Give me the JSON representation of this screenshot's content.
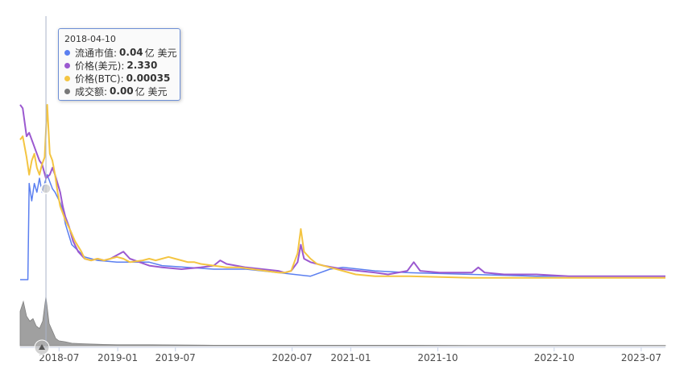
{
  "chart_data": {
    "type": "line",
    "x_tick_labels": [
      "2018-07",
      "2019-01",
      "2019-07",
      "2020-07",
      "2021-01",
      "2021-10",
      "2022-10",
      "2023-07"
    ],
    "x_range": [
      "2018-03-01",
      "2023-09-15"
    ],
    "series": [
      {
        "name": "流通市值",
        "color": "#5b7ff0",
        "values": [
          [
            0,
            0
          ],
          [
            0.012,
            0
          ],
          [
            0.014,
            0.55
          ],
          [
            0.018,
            0.45
          ],
          [
            0.022,
            0.55
          ],
          [
            0.026,
            0.5
          ],
          [
            0.03,
            0.58
          ],
          [
            0.034,
            0.5
          ],
          [
            0.038,
            0.55
          ],
          [
            0.042,
            0.6
          ],
          [
            0.046,
            0.56
          ],
          [
            0.05,
            0.52
          ],
          [
            0.054,
            0.5
          ],
          [
            0.058,
            0.47
          ],
          [
            0.062,
            0.44
          ],
          [
            0.066,
            0.4
          ],
          [
            0.07,
            0.32
          ],
          [
            0.08,
            0.2
          ],
          [
            0.1,
            0.13
          ],
          [
            0.12,
            0.11
          ],
          [
            0.15,
            0.1
          ],
          [
            0.2,
            0.1
          ],
          [
            0.22,
            0.08
          ],
          [
            0.3,
            0.06
          ],
          [
            0.35,
            0.06
          ],
          [
            0.4,
            0.04
          ],
          [
            0.45,
            0.02
          ],
          [
            0.48,
            0.06
          ],
          [
            0.5,
            0.07
          ],
          [
            0.55,
            0.05
          ],
          [
            0.6,
            0.04
          ],
          [
            0.7,
            0.03
          ],
          [
            0.8,
            0.02
          ],
          [
            0.9,
            0.02
          ],
          [
            1.0,
            0.02
          ]
        ]
      },
      {
        "name": "价格(美元)",
        "color": "#9b59d0",
        "values": [
          [
            0,
            1.0
          ],
          [
            0.004,
            0.98
          ],
          [
            0.01,
            0.82
          ],
          [
            0.014,
            0.84
          ],
          [
            0.02,
            0.78
          ],
          [
            0.026,
            0.72
          ],
          [
            0.03,
            0.68
          ],
          [
            0.034,
            0.66
          ],
          [
            0.04,
            0.58
          ],
          [
            0.046,
            0.6
          ],
          [
            0.05,
            0.64
          ],
          [
            0.054,
            0.6
          ],
          [
            0.058,
            0.55
          ],
          [
            0.062,
            0.5
          ],
          [
            0.066,
            0.42
          ],
          [
            0.07,
            0.36
          ],
          [
            0.076,
            0.3
          ],
          [
            0.082,
            0.22
          ],
          [
            0.09,
            0.16
          ],
          [
            0.1,
            0.12
          ],
          [
            0.11,
            0.11
          ],
          [
            0.12,
            0.12
          ],
          [
            0.13,
            0.11
          ],
          [
            0.14,
            0.12
          ],
          [
            0.15,
            0.14
          ],
          [
            0.16,
            0.16
          ],
          [
            0.17,
            0.12
          ],
          [
            0.2,
            0.08
          ],
          [
            0.22,
            0.07
          ],
          [
            0.25,
            0.06
          ],
          [
            0.28,
            0.07
          ],
          [
            0.3,
            0.08
          ],
          [
            0.31,
            0.11
          ],
          [
            0.32,
            0.09
          ],
          [
            0.35,
            0.07
          ],
          [
            0.4,
            0.05
          ],
          [
            0.41,
            0.04
          ],
          [
            0.42,
            0.05
          ],
          [
            0.43,
            0.1
          ],
          [
            0.435,
            0.2
          ],
          [
            0.44,
            0.12
          ],
          [
            0.45,
            0.1
          ],
          [
            0.47,
            0.08
          ],
          [
            0.5,
            0.06
          ],
          [
            0.55,
            0.04
          ],
          [
            0.57,
            0.03
          ],
          [
            0.6,
            0.05
          ],
          [
            0.61,
            0.1
          ],
          [
            0.62,
            0.05
          ],
          [
            0.65,
            0.04
          ],
          [
            0.7,
            0.04
          ],
          [
            0.71,
            0.07
          ],
          [
            0.72,
            0.04
          ],
          [
            0.75,
            0.03
          ],
          [
            0.8,
            0.03
          ],
          [
            0.85,
            0.02
          ],
          [
            0.9,
            0.02
          ],
          [
            0.95,
            0.02
          ],
          [
            1.0,
            0.02
          ]
        ]
      },
      {
        "name": "价格(BTC)",
        "color": "#f4c542",
        "values": [
          [
            0,
            0.8
          ],
          [
            0.004,
            0.82
          ],
          [
            0.01,
            0.7
          ],
          [
            0.014,
            0.6
          ],
          [
            0.018,
            0.68
          ],
          [
            0.022,
            0.72
          ],
          [
            0.026,
            0.64
          ],
          [
            0.03,
            0.6
          ],
          [
            0.034,
            0.66
          ],
          [
            0.038,
            0.7
          ],
          [
            0.042,
            1.0
          ],
          [
            0.046,
            0.72
          ],
          [
            0.05,
            0.68
          ],
          [
            0.054,
            0.6
          ],
          [
            0.058,
            0.5
          ],
          [
            0.062,
            0.42
          ],
          [
            0.066,
            0.38
          ],
          [
            0.07,
            0.34
          ],
          [
            0.078,
            0.28
          ],
          [
            0.085,
            0.22
          ],
          [
            0.095,
            0.16
          ],
          [
            0.1,
            0.12
          ],
          [
            0.11,
            0.11
          ],
          [
            0.12,
            0.12
          ],
          [
            0.13,
            0.11
          ],
          [
            0.14,
            0.12
          ],
          [
            0.15,
            0.13
          ],
          [
            0.16,
            0.12
          ],
          [
            0.17,
            0.1
          ],
          [
            0.19,
            0.11
          ],
          [
            0.2,
            0.12
          ],
          [
            0.21,
            0.11
          ],
          [
            0.22,
            0.12
          ],
          [
            0.23,
            0.13
          ],
          [
            0.24,
            0.12
          ],
          [
            0.25,
            0.11
          ],
          [
            0.26,
            0.1
          ],
          [
            0.27,
            0.1
          ],
          [
            0.28,
            0.09
          ],
          [
            0.3,
            0.08
          ],
          [
            0.32,
            0.07
          ],
          [
            0.34,
            0.07
          ],
          [
            0.36,
            0.06
          ],
          [
            0.38,
            0.05
          ],
          [
            0.4,
            0.04
          ],
          [
            0.41,
            0.04
          ],
          [
            0.42,
            0.05
          ],
          [
            0.43,
            0.15
          ],
          [
            0.435,
            0.29
          ],
          [
            0.44,
            0.16
          ],
          [
            0.45,
            0.12
          ],
          [
            0.46,
            0.09
          ],
          [
            0.48,
            0.07
          ],
          [
            0.5,
            0.05
          ],
          [
            0.52,
            0.03
          ],
          [
            0.55,
            0.02
          ],
          [
            0.6,
            0.02
          ],
          [
            0.7,
            0.01
          ],
          [
            0.8,
            0.01
          ],
          [
            0.9,
            0.01
          ],
          [
            1.0,
            0.01
          ]
        ]
      }
    ],
    "volume_series": {
      "name": "成交额",
      "color": "#808080",
      "values": [
        [
          0,
          0.7
        ],
        [
          0.005,
          0.9
        ],
        [
          0.01,
          0.6
        ],
        [
          0.015,
          0.5
        ],
        [
          0.02,
          0.55
        ],
        [
          0.025,
          0.4
        ],
        [
          0.03,
          0.35
        ],
        [
          0.035,
          0.5
        ],
        [
          0.04,
          1.0
        ],
        [
          0.045,
          0.45
        ],
        [
          0.05,
          0.3
        ],
        [
          0.055,
          0.15
        ],
        [
          0.06,
          0.1
        ],
        [
          0.07,
          0.08
        ],
        [
          0.08,
          0.05
        ],
        [
          0.1,
          0.04
        ],
        [
          0.12,
          0.03
        ],
        [
          0.15,
          0.02
        ],
        [
          0.2,
          0.02
        ],
        [
          0.3,
          0.01
        ],
        [
          0.4,
          0.01
        ],
        [
          0.5,
          0.01
        ],
        [
          0.6,
          0.01
        ],
        [
          0.7,
          0.005
        ],
        [
          0.8,
          0.005
        ],
        [
          0.9,
          0.005
        ],
        [
          1.0,
          0.005
        ]
      ]
    },
    "hover_x": 0.04
  },
  "tooltip": {
    "date": "2018-04-10",
    "rows": [
      {
        "label": "流通市值:",
        "value": "0.04",
        "unit": "亿 美元",
        "color": "#5b7ff0"
      },
      {
        "label": "价格(美元):",
        "value": "2.330",
        "unit": "",
        "color": "#9b59d0"
      },
      {
        "label": "价格(BTC):",
        "value": "0.00035",
        "unit": "",
        "color": "#f4c542"
      },
      {
        "label": "成交额:",
        "value": "0.00",
        "unit": "亿 美元",
        "color": "#777777"
      }
    ]
  }
}
